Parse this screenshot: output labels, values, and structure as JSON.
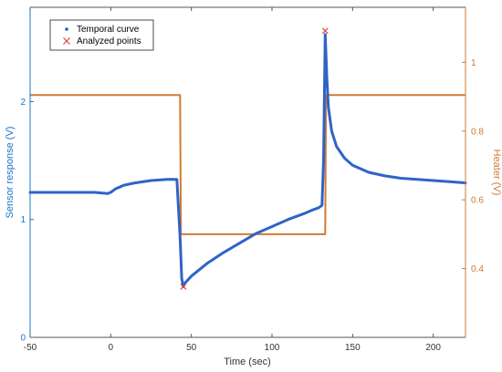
{
  "chart_data": {
    "type": "line",
    "title": "",
    "xlabel": "Time (sec)",
    "ylabel_left": "Sensor   response (V)",
    "ylabel_right": "Heater (V)",
    "xlim": [
      -50,
      220
    ],
    "ylim_left": [
      0,
      2.8
    ],
    "ylim_right": [
      0.2,
      1.16
    ],
    "xticks": [
      -50,
      0,
      50,
      100,
      150,
      200
    ],
    "yticks_left": [
      0,
      1,
      2
    ],
    "yticks_right": [
      0.4,
      0.6,
      0.8,
      1
    ],
    "grid": false,
    "legend": {
      "placement": "top-left",
      "entries": [
        {
          "label": "Temporal curve",
          "marker": "dot",
          "color": "#1f5fbf"
        },
        {
          "label": "Analyzed points",
          "marker": "x",
          "color": "#d9453a"
        }
      ]
    },
    "series": [
      {
        "name": "Temporal curve",
        "axis": "left",
        "color": "#2f63c8",
        "x": [
          -50,
          -30,
          -10,
          -2,
          0,
          3,
          8,
          15,
          25,
          35,
          41,
          43,
          44,
          45,
          46,
          50,
          60,
          70,
          80,
          90,
          100,
          110,
          120,
          125,
          129,
          131,
          132,
          133,
          134,
          135,
          137,
          140,
          145,
          150,
          160,
          170,
          180,
          190,
          200,
          210,
          220
        ],
        "y": [
          1.23,
          1.23,
          1.23,
          1.22,
          1.23,
          1.26,
          1.29,
          1.31,
          1.33,
          1.34,
          1.34,
          0.85,
          0.5,
          0.43,
          0.46,
          0.52,
          0.63,
          0.72,
          0.8,
          0.88,
          0.94,
          1.0,
          1.05,
          1.08,
          1.1,
          1.12,
          1.5,
          2.57,
          2.2,
          1.95,
          1.75,
          1.62,
          1.52,
          1.46,
          1.4,
          1.37,
          1.35,
          1.34,
          1.33,
          1.32,
          1.31
        ]
      },
      {
        "name": "Heater",
        "axis": "right",
        "color": "#d27b2f",
        "x": [
          -50,
          43,
          43.5,
          133,
          133.5,
          220
        ],
        "y": [
          0.905,
          0.905,
          0.5,
          0.5,
          0.905,
          0.905
        ]
      }
    ],
    "analyzed_points": {
      "name": "Analyzed points",
      "axis": "left",
      "color": "#d9453a",
      "x": [
        45,
        133
      ],
      "y": [
        0.43,
        2.6
      ]
    }
  }
}
